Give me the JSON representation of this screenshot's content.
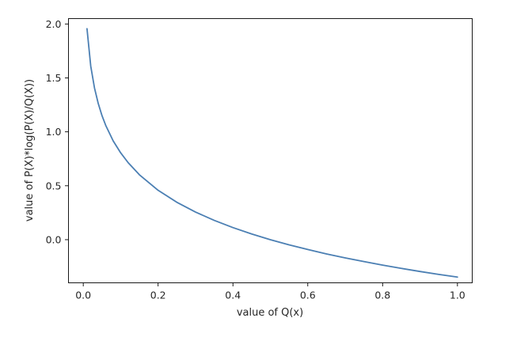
{
  "chart_data": {
    "type": "line",
    "title": "",
    "xlabel": "value of Q(x)",
    "ylabel": "value of P(X)*log(P(X)/Q(X))",
    "xlim": [
      -0.0395,
      1.0395
    ],
    "ylim": [
      -0.4,
      2.05
    ],
    "xticks": [
      0.0,
      0.2,
      0.4,
      0.6,
      0.8,
      1.0
    ],
    "xtick_labels": [
      "0.0",
      "0.2",
      "0.4",
      "0.6",
      "0.8",
      "1.0"
    ],
    "yticks": [
      0.0,
      0.5,
      1.0,
      1.5,
      2.0
    ],
    "ytick_labels": [
      "0.0",
      "0.5",
      "1.0",
      "1.5",
      "2.0"
    ],
    "grid": false,
    "series": [
      {
        "color": "#4b7fb3",
        "x": [
          0.01,
          0.02,
          0.03,
          0.04,
          0.05,
          0.06,
          0.08,
          0.1,
          0.12,
          0.15,
          0.2,
          0.25,
          0.3,
          0.35,
          0.4,
          0.45,
          0.5,
          0.55,
          0.6,
          0.65,
          0.7,
          0.75,
          0.8,
          0.85,
          0.9,
          0.95,
          1.0
        ],
        "y": [
          1.956,
          1.609,
          1.407,
          1.263,
          1.151,
          1.06,
          0.916,
          0.805,
          0.714,
          0.602,
          0.458,
          0.347,
          0.256,
          0.179,
          0.112,
          0.053,
          0.0,
          -0.048,
          -0.091,
          -0.132,
          -0.169,
          -0.203,
          -0.236,
          -0.266,
          -0.295,
          -0.322,
          -0.347
        ]
      }
    ]
  }
}
